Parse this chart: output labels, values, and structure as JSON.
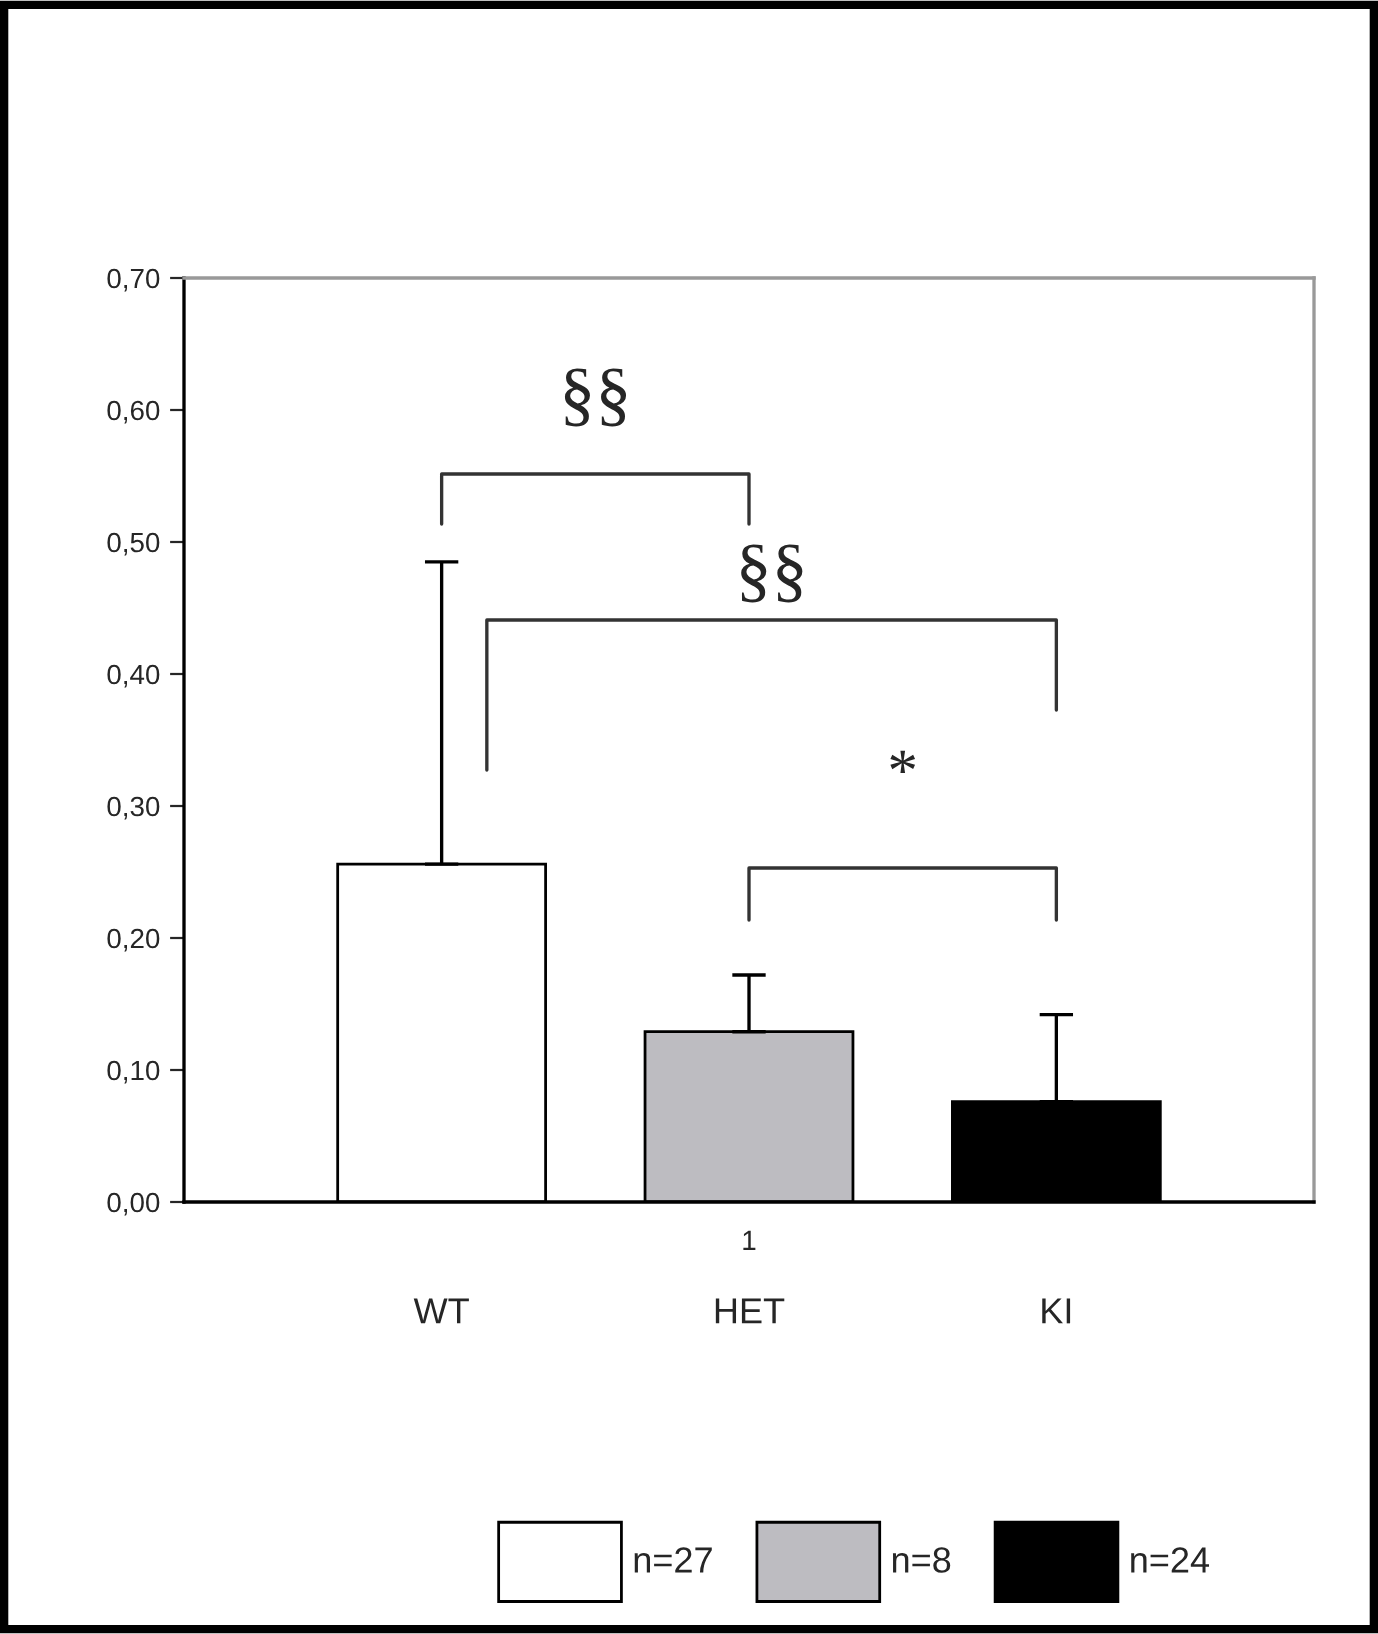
{
  "chart_data": {
    "type": "bar",
    "categories": [
      "1"
    ],
    "series": [
      {
        "name": "n=27",
        "color": "#ffffff",
        "values": [
          0.256
        ],
        "errors": [
          [
            0.256,
            0.485
          ]
        ]
      },
      {
        "name": "n=8",
        "color": "#bdbcc1",
        "values": [
          0.129
        ],
        "errors": [
          [
            0.129,
            0.172
          ]
        ]
      },
      {
        "name": "n=24",
        "color": "#000000",
        "values": [
          0.076
        ],
        "errors": [
          [
            0.076,
            0.142
          ]
        ]
      }
    ],
    "ylim": [
      0,
      0.7
    ],
    "yticks": [
      {
        "value": 0,
        "label": "0,00"
      },
      {
        "value": 0.1,
        "label": "0,10"
      },
      {
        "value": 0.2,
        "label": "0,20"
      },
      {
        "value": 0.3,
        "label": "0,30"
      },
      {
        "value": 0.4,
        "label": "0,40"
      },
      {
        "value": 0.5,
        "label": "0,50"
      },
      {
        "value": 0.6,
        "label": "0,60"
      },
      {
        "value": 0.7,
        "label": "0,70"
      }
    ],
    "annotations": [
      "§§",
      "§§",
      "*",
      "WT",
      "HET",
      "KI"
    ],
    "legend": "bottom",
    "grid": false
  }
}
